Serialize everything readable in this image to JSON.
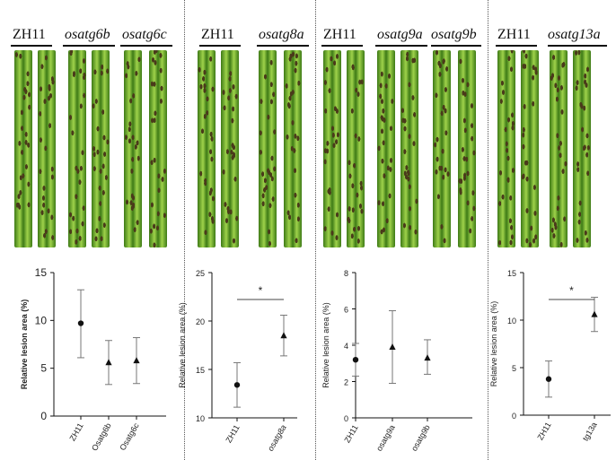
{
  "figure": {
    "panels": [
      {
        "genotypes": [
          "ZH11",
          "osatg6b",
          "osatg6c"
        ],
        "chart_data": {
          "type": "scatter",
          "ylabel": "Relative lesion area (%)",
          "ylim": [
            0,
            15
          ],
          "yticks": [
            0,
            5,
            10,
            15
          ],
          "categories": [
            "ZH11",
            "Osatg6b",
            "Osatg6c"
          ],
          "markers": [
            "circle",
            "triangle",
            "triangle"
          ],
          "values": [
            9.7,
            5.6,
            5.8
          ],
          "error_low": [
            6.1,
            3.3,
            3.4
          ],
          "error_high": [
            13.2,
            7.9,
            8.2
          ],
          "significance": ""
        }
      },
      {
        "genotypes": [
          "ZH11",
          "osatg8a"
        ],
        "chart_data": {
          "type": "scatter",
          "ylabel": "Relative lesion area (%)",
          "ylim": [
            10,
            25
          ],
          "yticks": [
            10,
            15,
            20,
            25
          ],
          "categories": [
            "ZH11",
            "osatg8a"
          ],
          "markers": [
            "circle",
            "triangle"
          ],
          "values": [
            13.4,
            18.5
          ],
          "error_low": [
            11.1,
            16.4
          ],
          "error_high": [
            15.7,
            20.6
          ],
          "significance": "*"
        }
      },
      {
        "genotypes": [
          "ZH11",
          "osatg9a",
          "osatg9b"
        ],
        "chart_data": {
          "type": "scatter",
          "ylabel": "Relative lesion area (%)",
          "ylim": [
            0,
            8
          ],
          "yticks": [
            0,
            2,
            4,
            6,
            8
          ],
          "categories": [
            "ZH11",
            "osatg9a",
            "osatg9b"
          ],
          "markers": [
            "circle",
            "triangle",
            "triangle"
          ],
          "values": [
            3.2,
            3.9,
            3.3
          ],
          "error_low": [
            2.3,
            1.9,
            2.4
          ],
          "error_high": [
            4.1,
            5.9,
            4.3
          ],
          "significance": ""
        }
      },
      {
        "genotypes": [
          "ZH11",
          "osatg13a"
        ],
        "chart_data": {
          "type": "scatter",
          "ylabel": "Relative lesion area (%)",
          "ylim": [
            0,
            15
          ],
          "yticks": [
            0,
            5,
            10,
            15
          ],
          "categories": [
            "ZH11",
            "tg13a"
          ],
          "markers": [
            "circle",
            "triangle"
          ],
          "values": [
            3.8,
            10.6
          ],
          "error_low": [
            1.9,
            8.8
          ],
          "error_high": [
            5.7,
            12.4
          ],
          "significance": "*"
        }
      }
    ],
    "colors": {
      "leaf_light": "#9fd24a",
      "leaf_dark": "#3d7a16",
      "lesion": "#4a3a1a",
      "ink": "#111111"
    }
  }
}
